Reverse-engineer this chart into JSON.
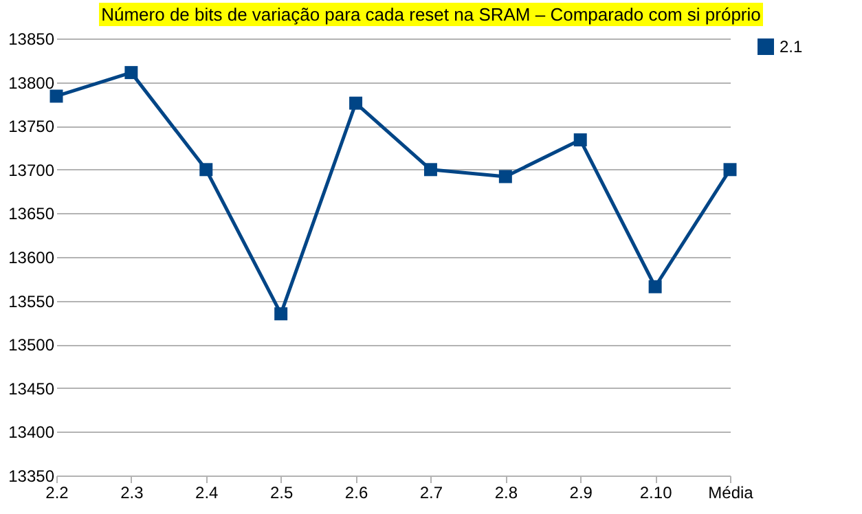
{
  "chart_data": {
    "type": "line",
    "title": "Número de bits de variação para cada reset na SRAM – Comparado com si próprio",
    "categories": [
      "2.2",
      "2.3",
      "2.4",
      "2.5",
      "2.6",
      "2.7",
      "2.8",
      "2.9",
      "2.10",
      "Média"
    ],
    "series": [
      {
        "name": "2.1",
        "color": "#004586",
        "values": [
          13784,
          13811,
          13700,
          13535,
          13776,
          13700,
          13692,
          13734,
          13566,
          13700
        ]
      }
    ],
    "ylim": [
      13350,
      13850
    ],
    "yticks": [
      13350,
      13400,
      13450,
      13500,
      13550,
      13600,
      13650,
      13700,
      13750,
      13800,
      13850
    ],
    "grid": "y",
    "legend": "right",
    "marker": "square",
    "line_style": "solid"
  }
}
